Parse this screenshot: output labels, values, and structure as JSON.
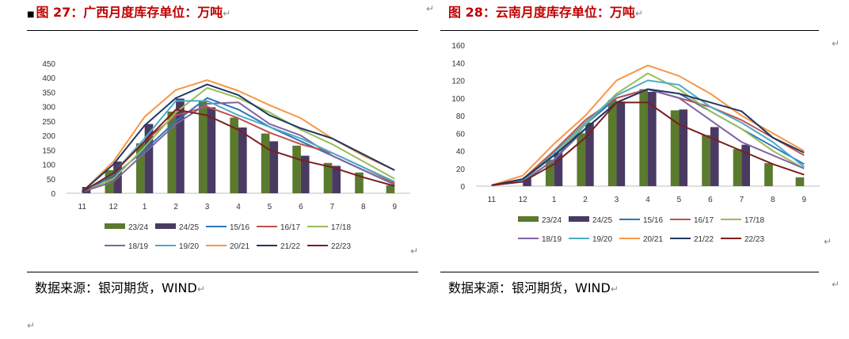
{
  "charts": [
    {
      "title": "图 27：广西月度库存单位：万吨",
      "source": "数据来源：银河期货，WIND",
      "chart_data": {
        "type": "bar+line",
        "categories": [
          "11",
          "12",
          "1",
          "2",
          "3",
          "4",
          "5",
          "6",
          "7",
          "8",
          "9"
        ],
        "ylim": [
          0,
          450
        ],
        "yticks": [
          0,
          50,
          100,
          150,
          200,
          250,
          300,
          350,
          400,
          450
        ],
        "legend_position": "bottom",
        "bars": [
          {
            "name": "23/24",
            "color": "#5a7a2e",
            "values": [
              null,
              80,
              173,
              283,
              320,
              262,
              207,
              165,
              105,
              72,
              27
            ]
          },
          {
            "name": "24/25",
            "color": "#4a3a62",
            "values": [
              22,
              110,
              240,
              328,
              298,
              228,
              180,
              130,
              95,
              null,
              null
            ]
          }
        ],
        "series": [
          {
            "name": "15/16",
            "color": "#2e75b6",
            "values": [
              5,
              60,
              150,
              250,
              330,
              290,
              230,
              180,
              130,
              80,
              30
            ]
          },
          {
            "name": "16/17",
            "color": "#c0504d",
            "values": [
              5,
              70,
              180,
              270,
              300,
              260,
              210,
              170,
              140,
              90,
              35
            ]
          },
          {
            "name": "17/18",
            "color": "#9bbb59",
            "values": [
              5,
              50,
              160,
              280,
              365,
              330,
              280,
              220,
              170,
              110,
              50
            ]
          },
          {
            "name": "18/19",
            "color": "#8064a2",
            "values": [
              5,
              40,
              140,
              240,
              310,
              315,
              240,
              200,
              130,
              80,
              30
            ]
          },
          {
            "name": "19/20",
            "color": "#4bacc6",
            "values": [
              5,
              70,
              190,
              320,
              320,
              270,
              230,
              190,
              140,
              90,
              40
            ]
          },
          {
            "name": "20/21",
            "color": "#f79646",
            "values": [
              5,
              110,
              265,
              358,
              392,
              355,
              305,
              260,
              190,
              130,
              80
            ]
          },
          {
            "name": "21/22",
            "color": "#1f3864",
            "values": [
              5,
              100,
              235,
              330,
              377,
              340,
              270,
              225,
              190,
              135,
              80
            ]
          },
          {
            "name": "22/23",
            "color": "#7b1f1f",
            "values": [
              5,
              70,
              180,
              290,
              270,
              220,
              150,
              115,
              90,
              55,
              25
            ]
          }
        ]
      }
    },
    {
      "title": "图 28：云南月度库存单位：万吨",
      "source": "数据来源：银河期货，WIND",
      "chart_data": {
        "type": "bar+line",
        "categories": [
          "11",
          "12",
          "1",
          "2",
          "3",
          "4",
          "5",
          "6",
          "7",
          "8",
          "9"
        ],
        "ylim": [
          0,
          160
        ],
        "yticks": [
          0,
          20,
          40,
          60,
          80,
          100,
          120,
          140,
          160
        ],
        "legend_position": "bottom",
        "bars": [
          {
            "name": "23/24",
            "color": "#5a7a2e",
            "values": [
              null,
              null,
              30,
              60,
              98,
              110,
              86,
              58,
              42,
              26,
              10
            ]
          },
          {
            "name": "24/25",
            "color": "#4a3a62",
            "values": [
              null,
              10,
              38,
              72,
              96,
              107,
              87,
              67,
              47,
              null,
              null
            ]
          }
        ],
        "series": [
          {
            "name": "15/16",
            "color": "#2e75b6",
            "values": [
              1,
              5,
              30,
              70,
              100,
              110,
              105,
              85,
              65,
              45,
              25
            ]
          },
          {
            "name": "16/17",
            "color": "#c0504d",
            "values": [
              1,
              8,
              40,
              75,
              100,
              110,
              100,
              90,
              75,
              55,
              35
            ]
          },
          {
            "name": "17/18",
            "color": "#9bbb59",
            "values": [
              1,
              6,
              35,
              70,
              105,
              128,
              110,
              85,
              65,
              40,
              20
            ]
          },
          {
            "name": "18/19",
            "color": "#8064a2",
            "values": [
              1,
              5,
              30,
              65,
              95,
              110,
              100,
              75,
              50,
              35,
              20
            ]
          },
          {
            "name": "19/20",
            "color": "#4bacc6",
            "values": [
              1,
              6,
              38,
              72,
              103,
              120,
              115,
              90,
              72,
              50,
              22
            ]
          },
          {
            "name": "20/21",
            "color": "#f79646",
            "values": [
              1,
              12,
              48,
              80,
              120,
              137,
              125,
              105,
              80,
              60,
              40
            ]
          },
          {
            "name": "21/22",
            "color": "#1f3864",
            "values": [
              1,
              8,
              35,
              65,
              95,
              110,
              105,
              95,
              85,
              55,
              38
            ]
          },
          {
            "name": "22/23",
            "color": "#7b1f1f",
            "values": [
              1,
              5,
              25,
              55,
              95,
              95,
              70,
              55,
              40,
              25,
              13
            ]
          }
        ]
      }
    }
  ]
}
